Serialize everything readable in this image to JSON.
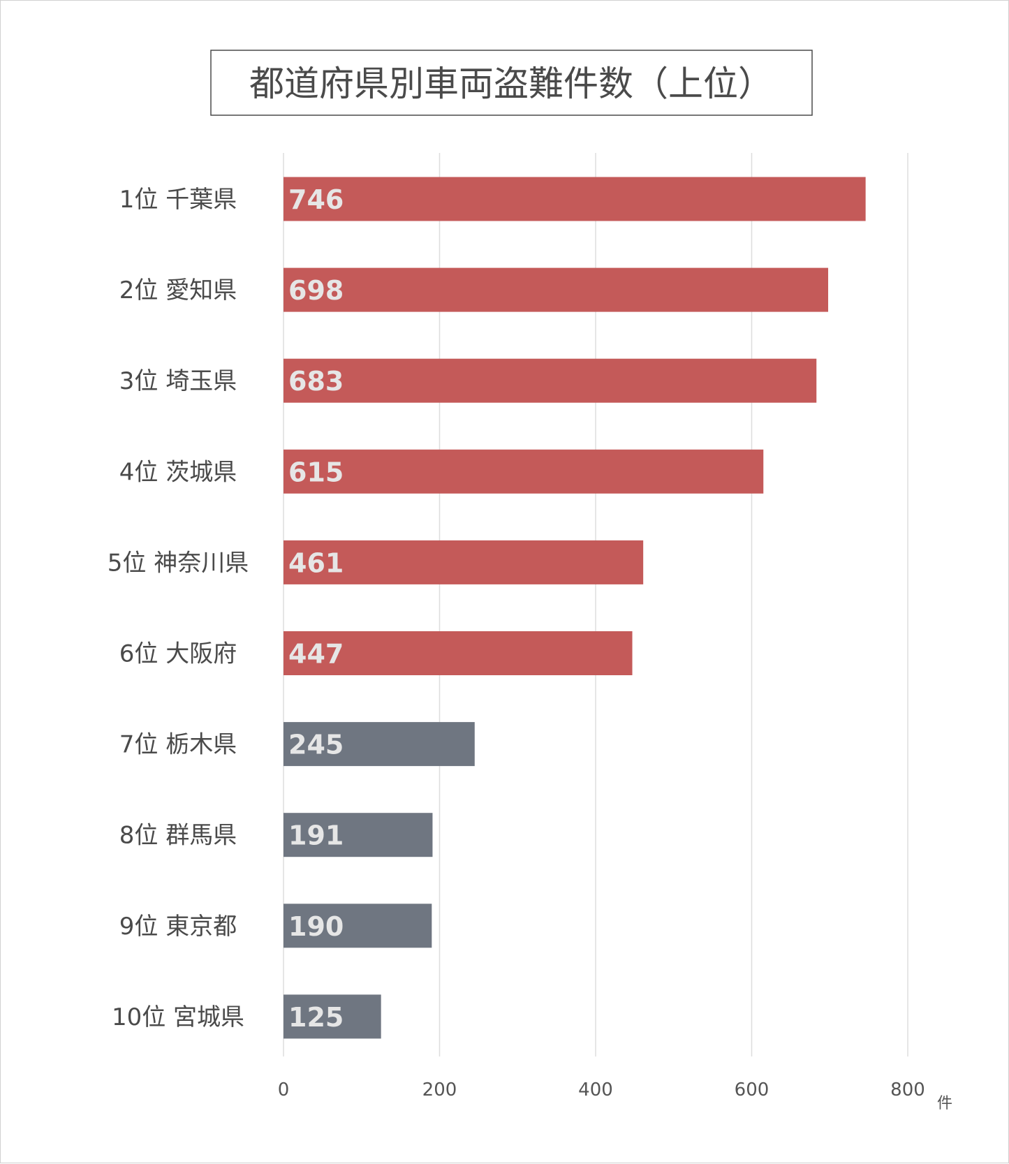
{
  "chart_data": {
    "type": "bar",
    "orientation": "horizontal",
    "title": "都道府県別車両盗難件数（上位）",
    "categories": [
      "1位 千葉県",
      "2位 愛知県",
      "3位 埼玉県",
      "4位 茨城県",
      "5位 神奈川県",
      "6位 大阪府",
      "7位 栃木県",
      "8位 群馬県",
      "9位 東京都",
      "10位 宮城県"
    ],
    "values": [
      746,
      698,
      683,
      615,
      461,
      447,
      245,
      191,
      190,
      125
    ],
    "xlim": [
      0,
      800
    ],
    "xticks": [
      0,
      200,
      400,
      600,
      800
    ],
    "x_unit": "件",
    "grid": "vertical",
    "legend": "none",
    "colors": {
      "highlight": "#c45a59",
      "other": "#6f7681",
      "grid": "#dddddd",
      "value_text": "#e6e6e6"
    },
    "highlight_top_n": 6
  }
}
